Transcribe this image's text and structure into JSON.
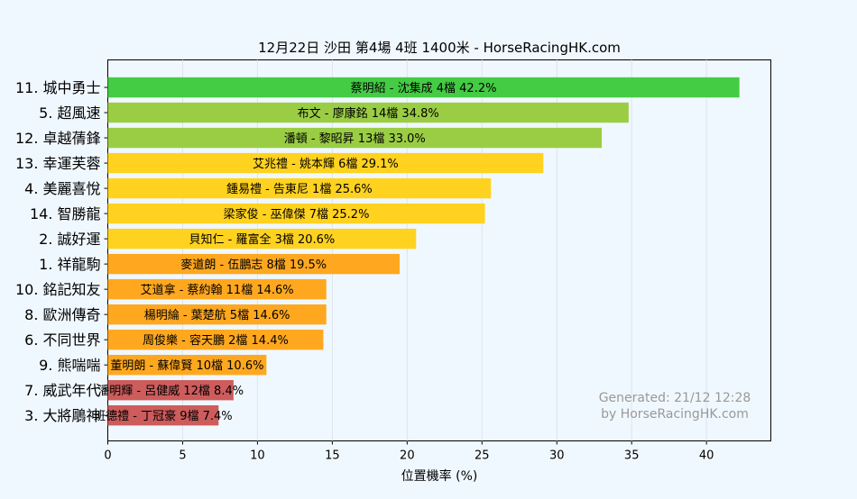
{
  "chart_data": {
    "type": "bar",
    "orientation": "horizontal",
    "title": "12月22日  沙田  第4場  4班  1400米 - HorseRacingHK.com",
    "xlabel": "位置機率 (%)",
    "ylabel": "",
    "xlim": [
      0,
      44.3
    ],
    "xticks": [
      0,
      5,
      10,
      15,
      20,
      25,
      30,
      35,
      40
    ],
    "grid": "x",
    "watermark": [
      "Generated: 21/12 12:28",
      "by HorseRacingHK.com"
    ],
    "categories": [
      "11. 城中勇士",
      "5. 超風速",
      "12. 卓越蒨鋒",
      "13. 幸運芙蓉",
      "4. 美麗喜悅",
      "14. 智勝龍",
      "2. 誠好運",
      "1. 祥龍駒",
      "10. 銘記知友",
      "8. 歐洲傳奇",
      "6. 不同世界",
      "9. 熊喘喘",
      "7. 威武年代",
      "3. 大將鵰神"
    ],
    "values": [
      42.2,
      34.8,
      33.0,
      29.1,
      25.6,
      25.2,
      20.6,
      19.5,
      14.6,
      14.6,
      14.4,
      10.6,
      8.4,
      7.4
    ],
    "bar_labels": [
      "蔡明紹 - 沈集成 4檔  42.2%",
      "布文 - 廖康銘 14檔  34.8%",
      "潘頓 - 黎昭昇 13檔  33.0%",
      "艾兆禮 - 姚本輝 6檔  29.1%",
      "鍾易禮 - 告東尼 1檔  25.6%",
      "梁家俊 - 巫偉傑 7檔  25.2%",
      "貝知仁 - 羅富全 3檔  20.6%",
      "麥道朗 - 伍鵬志 8檔  19.5%",
      "艾道拿 - 蔡約翰 11檔  14.6%",
      "楊明綸 - 葉楚航 5檔  14.6%",
      "周俊樂 - 容天鵬 2檔  14.4%",
      "董明朗 - 蘇偉賢 10檔  10.6%",
      "潘明輝 - 呂健威 12檔  8.4%",
      "班德禮 - 丁冠豪 9檔  7.4%"
    ],
    "colors": [
      "#44cc44",
      "#9acd44",
      "#9acd44",
      "#ffd21f",
      "#ffd21f",
      "#ffd21f",
      "#ffd21f",
      "#ffa81f",
      "#ffa81f",
      "#ffa81f",
      "#ffa81f",
      "#ffa81f",
      "#cd5c5c",
      "#cd5c5c"
    ]
  }
}
